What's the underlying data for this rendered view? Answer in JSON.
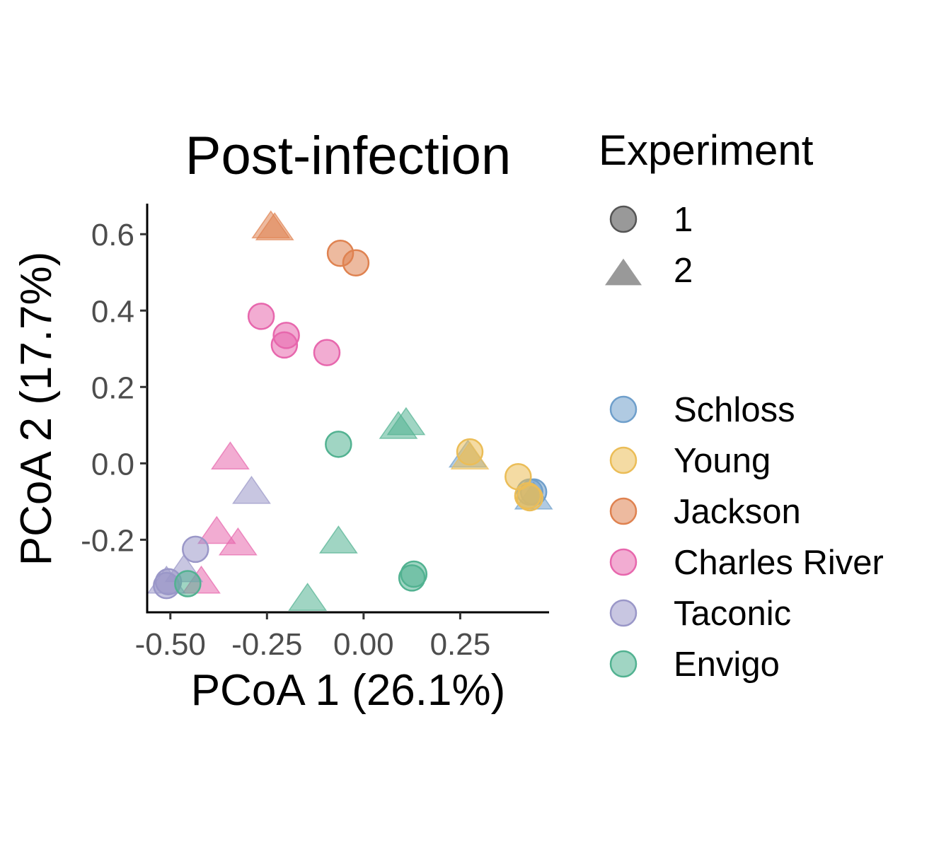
{
  "chart_data": {
    "type": "scatter",
    "title": "Post-infection",
    "xlabel": "PCoA 1 (26.1%)",
    "ylabel": "PCoA 2 (17.7%)",
    "xlim": [
      -0.56,
      0.48
    ],
    "ylim": [
      -0.39,
      0.68
    ],
    "x_ticks": [
      -0.5,
      -0.25,
      0.0,
      0.25
    ],
    "x_tick_labels": [
      "-0.50",
      "-0.25",
      "0.00",
      "0.25"
    ],
    "y_ticks": [
      -0.2,
      0.0,
      0.2,
      0.4,
      0.6
    ],
    "y_tick_labels": [
      "-0.2",
      "0.0",
      "0.2",
      "0.4",
      "0.6"
    ],
    "grid": false,
    "legend_position": "right",
    "shape_legend": {
      "title": "Experiment",
      "items": [
        {
          "label": "1",
          "shape": "circle"
        },
        {
          "label": "2",
          "shape": "triangle"
        }
      ]
    },
    "series": [
      {
        "name": "Schloss",
        "color": "#6f9fcb",
        "points": [
          {
            "x": 0.27,
            "y": 0.03,
            "experiment": "2"
          },
          {
            "x": 0.44,
            "y": -0.08,
            "experiment": "2"
          },
          {
            "x": 0.43,
            "y": -0.075,
            "experiment": "1"
          },
          {
            "x": 0.44,
            "y": -0.075,
            "experiment": "1"
          }
        ]
      },
      {
        "name": "Young",
        "color": "#ebbd57",
        "points": [
          {
            "x": 0.275,
            "y": 0.03,
            "experiment": "1"
          },
          {
            "x": 0.275,
            "y": 0.025,
            "experiment": "2"
          },
          {
            "x": 0.4,
            "y": -0.035,
            "experiment": "1"
          },
          {
            "x": 0.43,
            "y": -0.09,
            "experiment": "1"
          },
          {
            "x": 0.425,
            "y": -0.085,
            "experiment": "1"
          }
        ]
      },
      {
        "name": "Jackson",
        "color": "#df8250",
        "points": [
          {
            "x": -0.24,
            "y": 0.63,
            "experiment": "2"
          },
          {
            "x": -0.23,
            "y": 0.625,
            "experiment": "2"
          },
          {
            "x": -0.06,
            "y": 0.55,
            "experiment": "1"
          },
          {
            "x": -0.02,
            "y": 0.525,
            "experiment": "1"
          }
        ]
      },
      {
        "name": "Charles River",
        "color": "#e767ad",
        "points": [
          {
            "x": -0.265,
            "y": 0.385,
            "experiment": "1"
          },
          {
            "x": -0.2,
            "y": 0.335,
            "experiment": "1"
          },
          {
            "x": -0.205,
            "y": 0.31,
            "experiment": "1"
          },
          {
            "x": -0.095,
            "y": 0.29,
            "experiment": "1"
          },
          {
            "x": -0.345,
            "y": 0.025,
            "experiment": "2"
          },
          {
            "x": -0.38,
            "y": -0.17,
            "experiment": "2"
          },
          {
            "x": -0.325,
            "y": -0.2,
            "experiment": "2"
          },
          {
            "x": -0.42,
            "y": -0.3,
            "experiment": "2"
          }
        ]
      },
      {
        "name": "Taconic",
        "color": "#9a97c8",
        "points": [
          {
            "x": -0.29,
            "y": -0.065,
            "experiment": "2"
          },
          {
            "x": -0.435,
            "y": -0.225,
            "experiment": "1"
          },
          {
            "x": -0.51,
            "y": -0.3,
            "experiment": "2"
          },
          {
            "x": -0.465,
            "y": -0.27,
            "experiment": "2"
          },
          {
            "x": -0.51,
            "y": -0.32,
            "experiment": "1"
          },
          {
            "x": -0.505,
            "y": -0.31,
            "experiment": "1"
          }
        ]
      },
      {
        "name": "Envigo",
        "color": "#52b291",
        "points": [
          {
            "x": 0.09,
            "y": 0.105,
            "experiment": "2"
          },
          {
            "x": 0.11,
            "y": 0.115,
            "experiment": "2"
          },
          {
            "x": -0.065,
            "y": 0.05,
            "experiment": "1"
          },
          {
            "x": -0.065,
            "y": -0.195,
            "experiment": "2"
          },
          {
            "x": -0.145,
            "y": -0.345,
            "experiment": "2"
          },
          {
            "x": 0.13,
            "y": -0.29,
            "experiment": "1"
          },
          {
            "x": 0.125,
            "y": -0.3,
            "experiment": "1"
          },
          {
            "x": -0.455,
            "y": -0.315,
            "experiment": "1"
          }
        ]
      }
    ]
  }
}
